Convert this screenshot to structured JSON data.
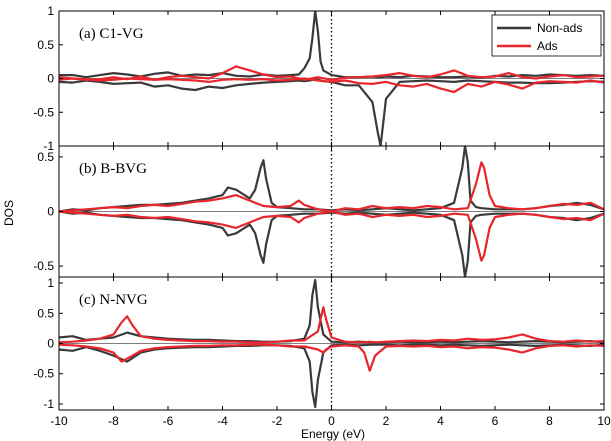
{
  "chart_data": {
    "type": "line",
    "xlabel": "Energy (eV)",
    "ylabel": "DOS",
    "xlim": [
      -10,
      10
    ],
    "xticks": [
      "-10",
      "-8",
      "-6",
      "-4",
      "-2",
      "0",
      "2",
      "4",
      "6",
      "8",
      "10"
    ],
    "fermi_level_marker": 0,
    "legend": {
      "placement": "top-right",
      "entries": [
        {
          "name": "Non-ads",
          "color": "#3a3a3a"
        },
        {
          "name": "Ads",
          "color": "#e8262b"
        }
      ]
    },
    "panels": [
      {
        "label": "(a) C1-VG",
        "ylim": [
          -1,
          1
        ],
        "yticks": [
          "1",
          "0.5",
          "0",
          "-0.5",
          "-1"
        ],
        "series": [
          {
            "name": "Non-ads",
            "color": "#3a3a3a",
            "x": [
              -10,
              -9.5,
              -9,
              -8.5,
              -8,
              -7.5,
              -7,
              -6.5,
              -6,
              -5.5,
              -5,
              -4.5,
              -4,
              -3.5,
              -3,
              -2.5,
              -2,
              -1.5,
              -1.2,
              -1,
              -0.8,
              -0.7,
              -0.6,
              -0.5,
              -0.4,
              -0.3,
              0,
              0.5,
              1,
              1.5,
              1.7,
              1.8,
              2,
              2.5,
              3,
              3.5,
              4,
              4.5,
              5,
              5.5,
              6,
              6.5,
              7,
              7.5,
              8,
              8.5,
              9,
              9.5,
              10
            ],
            "up": [
              0.05,
              0.05,
              0.02,
              0.05,
              0.08,
              0.06,
              0.03,
              0.07,
              0.09,
              0.04,
              0.06,
              0.05,
              0.08,
              0.04,
              0.03,
              0.06,
              0.04,
              0.05,
              0.06,
              0.15,
              0.3,
              0.6,
              1.0,
              0.7,
              0.25,
              0.12,
              0.05,
              0.02,
              0.02,
              0.03,
              0.02,
              0.02,
              0.03,
              0.02,
              0.04,
              0.03,
              0.02,
              0.02,
              0.03,
              0.01,
              0.04,
              0.03,
              0.05,
              0.04,
              0.06,
              0.05,
              0.04,
              0.05,
              0.04
            ],
            "down": [
              -0.05,
              -0.06,
              -0.03,
              -0.05,
              -0.08,
              -0.07,
              -0.06,
              -0.12,
              -0.1,
              -0.15,
              -0.17,
              -0.12,
              -0.14,
              -0.1,
              -0.08,
              -0.06,
              -0.05,
              -0.04,
              -0.03,
              -0.04,
              -0.03,
              -0.02,
              -0.02,
              -0.02,
              -0.03,
              -0.04,
              -0.05,
              -0.1,
              -0.1,
              -0.35,
              -0.8,
              -1.0,
              -0.3,
              -0.05,
              -0.04,
              -0.03,
              -0.04,
              -0.05,
              -0.03,
              -0.04,
              -0.05,
              -0.06,
              -0.06,
              -0.07,
              -0.07,
              -0.06,
              -0.05,
              -0.04,
              -0.05
            ]
          },
          {
            "name": "Ads",
            "color": "#e8262b",
            "x": [
              -10,
              -9.5,
              -9,
              -8.5,
              -8,
              -7.5,
              -7,
              -6.5,
              -6,
              -5.5,
              -5,
              -4.5,
              -4,
              -3.5,
              -3,
              -2.5,
              -2,
              -1.5,
              -1,
              -0.5,
              0,
              0.5,
              1,
              1.5,
              2,
              2.5,
              3,
              3.5,
              4,
              4.5,
              5,
              5.5,
              6,
              6.5,
              7,
              7.5,
              8,
              8.5,
              9,
              9.5,
              10
            ],
            "up": [
              0.02,
              0.0,
              -0.02,
              -0.01,
              0.02,
              -0.01,
              0.03,
              -0.02,
              0.02,
              0.04,
              0.02,
              0.0,
              0.08,
              0.18,
              0.12,
              0.06,
              0.02,
              0.03,
              -0.02,
              0.02,
              -0.02,
              0.01,
              0.02,
              0.03,
              0.05,
              0.08,
              0.04,
              0.02,
              0.06,
              0.12,
              0.04,
              0.02,
              0.03,
              0.08,
              0.02,
              0.0,
              0.03,
              0.05,
              0.02,
              0.03,
              0.04
            ],
            "down": [
              -0.02,
              0.0,
              -0.01,
              -0.03,
              -0.02,
              0.0,
              -0.01,
              -0.02,
              -0.01,
              -0.02,
              -0.03,
              -0.05,
              -0.02,
              -0.01,
              -0.02,
              -0.01,
              -0.03,
              -0.02,
              0.0,
              -0.03,
              -0.05,
              -0.03,
              -0.07,
              -0.08,
              -0.05,
              -0.1,
              -0.12,
              -0.08,
              -0.15,
              -0.2,
              -0.08,
              -0.12,
              -0.05,
              -0.09,
              -0.15,
              -0.06,
              -0.04,
              -0.05,
              -0.06,
              -0.03,
              -0.06
            ]
          }
        ]
      },
      {
        "label": "(b) B-BVG",
        "ylim": [
          -0.6,
          0.6
        ],
        "yticks": [
          "0.5",
          "0",
          "-0.5"
        ],
        "series": [
          {
            "name": "Non-ads",
            "color": "#3a3a3a",
            "x": [
              -10,
              -9.5,
              -9,
              -8.5,
              -8,
              -7.5,
              -7,
              -6.5,
              -6,
              -5.5,
              -5,
              -4.5,
              -4,
              -3.8,
              -3.5,
              -3,
              -2.8,
              -2.6,
              -2.5,
              -2.4,
              -2.2,
              -2,
              -1.5,
              -1,
              -0.5,
              0,
              0.5,
              1,
              1.5,
              2,
              2.5,
              3,
              3.5,
              4,
              4.5,
              4.8,
              4.9,
              5.0,
              5.1,
              5.3,
              5.5,
              6,
              6.5,
              7,
              7.5,
              8,
              8.5,
              9,
              9.5,
              10
            ],
            "up": [
              0.0,
              0.02,
              0.01,
              0.03,
              0.04,
              0.05,
              0.06,
              0.06,
              0.07,
              0.08,
              0.1,
              0.12,
              0.15,
              0.22,
              0.2,
              0.12,
              0.2,
              0.4,
              0.47,
              0.3,
              0.08,
              0.04,
              0.03,
              0.02,
              0.02,
              0.01,
              0.02,
              0.01,
              0.02,
              0.03,
              0.02,
              0.01,
              0.02,
              0.03,
              0.08,
              0.4,
              0.6,
              0.45,
              0.1,
              0.04,
              0.03,
              0.02,
              0.02,
              0.02,
              0.03,
              0.05,
              0.06,
              0.08,
              0.06,
              0.02
            ],
            "down": [
              0.0,
              -0.02,
              -0.01,
              -0.03,
              -0.04,
              -0.05,
              -0.06,
              -0.06,
              -0.07,
              -0.08,
              -0.1,
              -0.12,
              -0.15,
              -0.22,
              -0.2,
              -0.12,
              -0.2,
              -0.4,
              -0.47,
              -0.3,
              -0.08,
              -0.04,
              -0.03,
              -0.02,
              -0.02,
              -0.01,
              -0.02,
              -0.01,
              -0.02,
              -0.03,
              -0.02,
              -0.01,
              -0.02,
              -0.03,
              -0.08,
              -0.4,
              -0.6,
              -0.45,
              -0.1,
              -0.04,
              -0.03,
              -0.02,
              -0.02,
              -0.02,
              -0.03,
              -0.05,
              -0.06,
              -0.08,
              -0.06,
              -0.02
            ]
          },
          {
            "name": "Ads",
            "color": "#e8262b",
            "x": [
              -10,
              -9.5,
              -9,
              -8.5,
              -8,
              -7.5,
              -7,
              -6.5,
              -6,
              -5.5,
              -5,
              -4.5,
              -4,
              -3.5,
              -3,
              -2.5,
              -2,
              -1.5,
              -1.2,
              -1,
              -0.5,
              0,
              0.5,
              1,
              1.5,
              2,
              2.5,
              3,
              3.5,
              4,
              4.5,
              5,
              5.3,
              5.5,
              5.6,
              5.8,
              6,
              6.5,
              7,
              7.5,
              8,
              8.5,
              9,
              9.5,
              10
            ],
            "up": [
              0.0,
              0.01,
              0.02,
              0.03,
              0.04,
              0.03,
              0.05,
              0.06,
              0.05,
              0.07,
              0.09,
              0.1,
              0.12,
              0.15,
              0.1,
              0.05,
              0.04,
              0.05,
              0.1,
              0.06,
              0.02,
              0.0,
              0.03,
              0.02,
              0.05,
              0.03,
              0.04,
              0.03,
              0.05,
              0.04,
              0.02,
              0.03,
              0.25,
              0.45,
              0.4,
              0.15,
              0.05,
              0.03,
              0.02,
              0.03,
              0.05,
              0.07,
              0.06,
              0.08,
              0.02
            ],
            "down": [
              0.0,
              -0.01,
              -0.02,
              -0.03,
              -0.04,
              -0.03,
              -0.05,
              -0.06,
              -0.05,
              -0.07,
              -0.09,
              -0.1,
              -0.12,
              -0.15,
              -0.1,
              -0.05,
              -0.04,
              -0.05,
              -0.1,
              -0.06,
              -0.02,
              0.0,
              -0.03,
              -0.02,
              -0.05,
              -0.03,
              -0.04,
              -0.03,
              -0.05,
              -0.04,
              -0.02,
              -0.03,
              -0.25,
              -0.45,
              -0.4,
              -0.15,
              -0.05,
              -0.03,
              -0.02,
              -0.03,
              -0.05,
              -0.07,
              -0.06,
              -0.08,
              -0.02
            ]
          }
        ]
      },
      {
        "label": "(c) N-NVG",
        "ylim": [
          -1.1,
          1.1
        ],
        "yticks": [
          "1",
          "0.5",
          "0",
          "-0.5",
          "-1"
        ],
        "series": [
          {
            "name": "Non-ads",
            "color": "#3a3a3a",
            "x": [
              -10,
              -9.5,
              -9,
              -8.5,
              -8,
              -7.5,
              -7,
              -6.5,
              -6,
              -5.5,
              -5,
              -4.5,
              -4,
              -3.5,
              -3,
              -2.5,
              -2,
              -1.5,
              -1,
              -0.8,
              -0.7,
              -0.6,
              -0.5,
              -0.3,
              0,
              0.5,
              1,
              1.5,
              2,
              2.5,
              3,
              3.5,
              4,
              4.5,
              5,
              5.5,
              6,
              6.5,
              7,
              7.5,
              8,
              8.5,
              9,
              9.5,
              10
            ],
            "up": [
              0.1,
              0.12,
              0.06,
              0.08,
              0.1,
              0.18,
              0.12,
              0.1,
              0.08,
              0.07,
              0.06,
              0.06,
              0.05,
              0.04,
              0.04,
              0.03,
              0.03,
              0.04,
              0.08,
              0.3,
              0.8,
              1.05,
              0.6,
              0.15,
              0.03,
              0.02,
              0.03,
              0.02,
              0.02,
              0.03,
              0.02,
              0.02,
              0.03,
              0.02,
              0.03,
              0.04,
              0.03,
              0.02,
              0.03,
              0.04,
              0.03,
              0.02,
              0.03,
              0.04,
              0.02
            ],
            "down": [
              -0.1,
              -0.12,
              -0.06,
              -0.12,
              -0.2,
              -0.3,
              -0.15,
              -0.1,
              -0.08,
              -0.07,
              -0.06,
              -0.06,
              -0.05,
              -0.04,
              -0.04,
              -0.03,
              -0.03,
              -0.04,
              -0.08,
              -0.3,
              -0.8,
              -1.05,
              -0.6,
              -0.15,
              -0.03,
              -0.02,
              -0.03,
              -0.02,
              -0.02,
              -0.03,
              -0.02,
              -0.02,
              -0.03,
              -0.02,
              -0.03,
              -0.04,
              -0.03,
              -0.02,
              -0.03,
              -0.04,
              -0.03,
              -0.02,
              -0.03,
              -0.04,
              -0.02
            ]
          },
          {
            "name": "Ads",
            "color": "#e8262b",
            "x": [
              -10,
              -9.5,
              -9,
              -8.5,
              -8,
              -7.7,
              -7.5,
              -7.3,
              -7,
              -6.5,
              -6,
              -5.5,
              -5,
              -4.5,
              -4,
              -3.5,
              -3,
              -2.5,
              -2,
              -1.5,
              -1,
              -0.5,
              -0.3,
              -0.2,
              0,
              0.5,
              1,
              1.2,
              1.4,
              1.6,
              2,
              2.5,
              3,
              3.5,
              4,
              4.5,
              5,
              5.5,
              6,
              6.5,
              7,
              7.5,
              8,
              8.5,
              9,
              9.5,
              10
            ],
            "up": [
              0.02,
              0.03,
              0.05,
              0.08,
              0.15,
              0.35,
              0.45,
              0.3,
              0.12,
              0.08,
              0.06,
              0.05,
              0.04,
              0.04,
              0.03,
              0.03,
              0.02,
              0.02,
              0.03,
              0.05,
              0.05,
              0.2,
              0.6,
              0.4,
              0.1,
              0.03,
              0.02,
              0.02,
              0.03,
              0.02,
              0.03,
              0.04,
              0.05,
              0.04,
              0.06,
              0.05,
              0.08,
              0.06,
              0.07,
              0.1,
              0.15,
              0.08,
              0.04,
              0.03,
              0.05,
              0.03,
              0.04
            ],
            "down": [
              -0.02,
              -0.03,
              -0.05,
              -0.08,
              -0.15,
              -0.3,
              -0.25,
              -0.2,
              -0.12,
              -0.08,
              -0.06,
              -0.05,
              -0.04,
              -0.04,
              -0.03,
              -0.03,
              -0.02,
              -0.02,
              -0.03,
              -0.05,
              -0.05,
              -0.1,
              -0.15,
              -0.1,
              -0.05,
              -0.03,
              -0.05,
              -0.15,
              -0.45,
              -0.2,
              -0.05,
              -0.04,
              -0.05,
              -0.04,
              -0.06,
              -0.05,
              -0.08,
              -0.06,
              -0.07,
              -0.1,
              -0.15,
              -0.08,
              -0.04,
              -0.03,
              -0.05,
              -0.03,
              -0.04
            ]
          }
        ]
      }
    ]
  }
}
